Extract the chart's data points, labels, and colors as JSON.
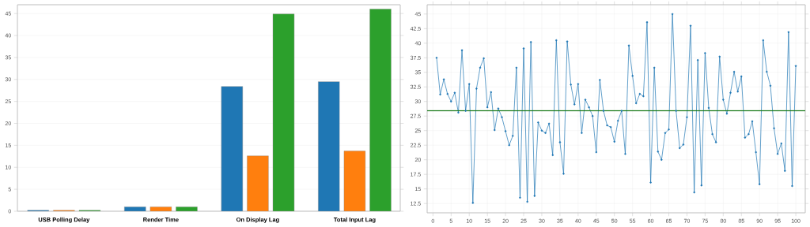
{
  "chart_data": [
    {
      "type": "bar",
      "categories": [
        "USB Polling Delay",
        "Render Time",
        "On Display Lag",
        "Total Input Lag"
      ],
      "series": [
        {
          "color": "#1f77b4",
          "values": [
            0.2,
            1.0,
            28.4,
            29.5
          ]
        },
        {
          "color": "#ff7f0e",
          "values": [
            0.2,
            1.0,
            12.6,
            13.7
          ]
        },
        {
          "color": "#2ca02c",
          "values": [
            0.2,
            1.0,
            44.9,
            46.0
          ]
        }
      ],
      "ylim": [
        0,
        47
      ],
      "yticks": [
        0,
        5,
        10,
        15,
        20,
        25,
        30,
        35,
        40,
        45
      ],
      "grid": "y"
    },
    {
      "type": "line",
      "marker": "circle",
      "grid": true,
      "x": [
        1,
        2,
        3,
        4,
        5,
        6,
        7,
        8,
        9,
        10,
        11,
        12,
        13,
        14,
        15,
        16,
        17,
        18,
        19,
        20,
        21,
        22,
        23,
        24,
        25,
        26,
        27,
        28,
        29,
        30,
        31,
        32,
        33,
        34,
        35,
        36,
        37,
        38,
        39,
        40,
        41,
        42,
        43,
        44,
        45,
        46,
        47,
        48,
        49,
        50,
        51,
        52,
        53,
        54,
        55,
        56,
        57,
        58,
        59,
        60,
        61,
        62,
        63,
        64,
        65,
        66,
        67,
        68,
        69,
        70,
        71,
        72,
        73,
        74,
        75,
        76,
        77,
        78,
        79,
        80,
        81,
        82,
        83,
        84,
        85,
        86,
        87,
        88,
        89,
        90,
        91,
        92,
        93,
        94,
        95,
        96,
        97,
        98,
        99,
        100
      ],
      "series": [
        {
          "color": "#1f77b4",
          "values": [
            37.5,
            31.2,
            33.8,
            31.3,
            30.0,
            31.5,
            28.1,
            38.8,
            28.4,
            33.0,
            12.6,
            32.2,
            35.8,
            37.4,
            29.0,
            31.6,
            25.1,
            28.8,
            27.3,
            24.9,
            22.5,
            24.1,
            35.8,
            13.5,
            39.1,
            12.8,
            40.2,
            13.8,
            26.4,
            25.0,
            24.6,
            26.2,
            20.8,
            40.5,
            23.0,
            17.6,
            40.3,
            32.9,
            29.5,
            33.0,
            24.6,
            30.3,
            29.0,
            27.5,
            21.3,
            33.7,
            28.4,
            25.9,
            25.6,
            23.1,
            26.7,
            28.4,
            21.0,
            39.6,
            34.4,
            29.7,
            31.3,
            30.9,
            43.6,
            16.1,
            35.8,
            21.4,
            20.0,
            24.6,
            25.2,
            45.0,
            28.4,
            22.0,
            22.6,
            27.3,
            43.0,
            14.4,
            37.1,
            15.6,
            38.3,
            28.9,
            24.4,
            23.0,
            37.7,
            30.3,
            27.9,
            31.5,
            35.1,
            31.7,
            34.3,
            23.8,
            24.4,
            26.6,
            21.3,
            15.8,
            40.5,
            35.1,
            32.7,
            25.4,
            21.0,
            22.8,
            18.1,
            41.9,
            15.5,
            36.1
          ]
        }
      ],
      "ref_lines": [
        {
          "axis": "y",
          "value": 28.4,
          "color": "#1a7a1a"
        }
      ],
      "xlim": [
        -1.6,
        102.6
      ],
      "xticks": [
        0,
        5,
        10,
        15,
        20,
        25,
        30,
        35,
        40,
        45,
        50,
        55,
        60,
        65,
        70,
        75,
        80,
        85,
        90,
        95,
        100
      ],
      "ylim": [
        10.9,
        46.6
      ],
      "yticks": [
        12.5,
        15,
        17.5,
        20,
        22.5,
        25,
        27.5,
        30,
        32.5,
        35,
        37.5,
        40,
        42.5,
        45
      ]
    }
  ]
}
